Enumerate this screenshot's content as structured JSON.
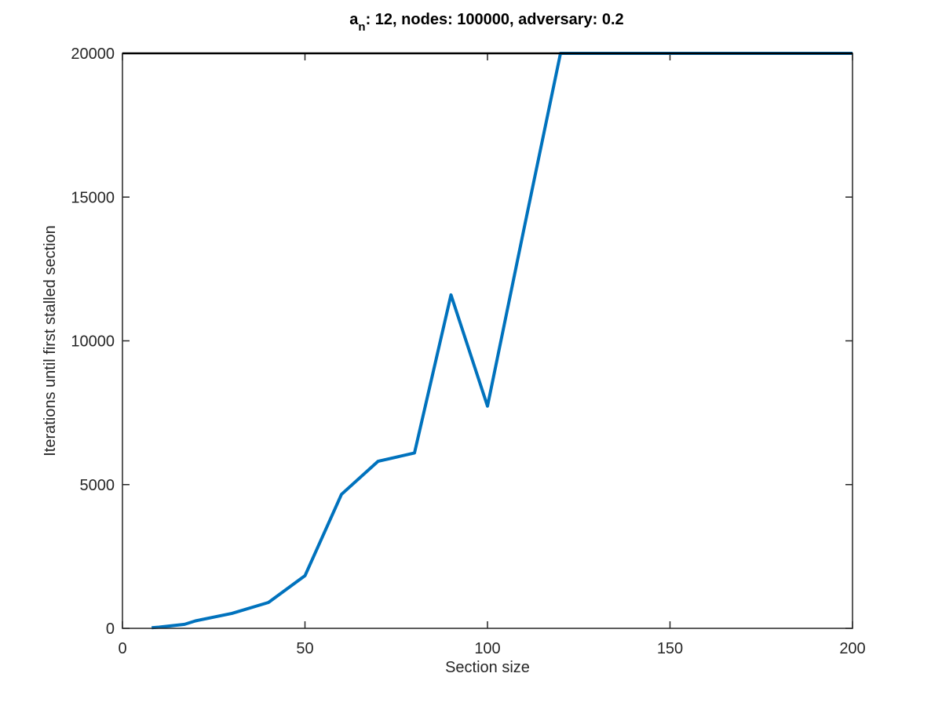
{
  "chart_data": {
    "type": "line",
    "title_base": "a",
    "title_subscript": "n",
    "title_rest": ": 12, nodes: 100000, adversary: 0.2",
    "xlabel": "Section size",
    "ylabel": "Iterations until first stalled section",
    "xlim": [
      0,
      200
    ],
    "ylim": [
      0,
      20000
    ],
    "xticks": [
      0,
      50,
      100,
      150,
      200
    ],
    "yticks": [
      0,
      5000,
      10000,
      15000,
      20000
    ],
    "grid": false,
    "line_color": "#0072BD",
    "series": [
      {
        "x": [
          8,
          10,
          17,
          20,
          30,
          40,
          50,
          60,
          70,
          80,
          90,
          100,
          110,
          120,
          130,
          140,
          150,
          160,
          170,
          180,
          190,
          200
        ],
        "y": [
          20,
          40,
          140,
          260,
          520,
          900,
          1830,
          4660,
          5810,
          6100,
          11600,
          7730,
          13900,
          20000,
          20000,
          20000,
          20000,
          20000,
          20000,
          20000,
          20000,
          20000
        ]
      }
    ]
  }
}
